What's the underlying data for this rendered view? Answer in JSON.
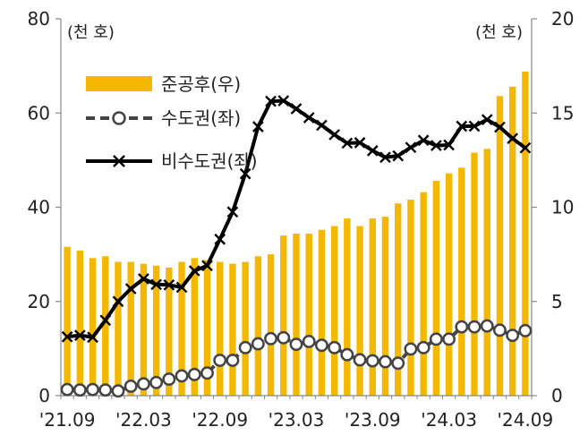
{
  "chart_data": {
    "type": "bar+line",
    "left_unit": "(천 호)",
    "right_unit": "(천 호)",
    "y_left": {
      "lim": [
        0,
        80
      ],
      "ticks": [
        "0",
        "20",
        "40",
        "60",
        "80"
      ]
    },
    "y_right": {
      "lim": [
        0,
        20
      ],
      "ticks": [
        "0",
        "5",
        "10",
        "15",
        "20"
      ]
    },
    "x_tick_labels": [
      "'21.09",
      "'22.03",
      "'22.09",
      "'23.03",
      "'23.09",
      "'24.03",
      "'24.09"
    ],
    "x_tick_index": [
      0,
      6,
      12,
      18,
      24,
      30,
      36
    ],
    "months": [
      "'21.09",
      "'21.10",
      "'21.11",
      "'21.12",
      "'22.01",
      "'22.02",
      "'22.03",
      "'22.04",
      "'22.05",
      "'22.06",
      "'22.07",
      "'22.08",
      "'22.09",
      "'22.10",
      "'22.11",
      "'22.12",
      "'23.01",
      "'23.02",
      "'23.03",
      "'23.04",
      "'23.05",
      "'23.06",
      "'23.07",
      "'23.08",
      "'23.09",
      "'23.10",
      "'23.11",
      "'23.12",
      "'24.01",
      "'24.02",
      "'24.03",
      "'24.04",
      "'24.05",
      "'24.06",
      "'24.07",
      "'24.08",
      "'24.09"
    ],
    "legend": [
      {
        "key": "bar",
        "label": "준공후(우)"
      },
      {
        "key": "metro",
        "label": "수도권(좌)"
      },
      {
        "key": "nonmetro",
        "label": "비수도권(좌)"
      }
    ],
    "series": [
      {
        "name": "준공후(우)",
        "axis": "right",
        "color": "#f5b800",
        "values": [
          7.9,
          7.7,
          7.3,
          7.4,
          7.1,
          7.1,
          7.0,
          6.9,
          6.8,
          7.1,
          7.3,
          7.2,
          7.1,
          7.0,
          7.1,
          7.4,
          7.5,
          8.5,
          8.6,
          8.6,
          8.8,
          9.0,
          9.4,
          9.0,
          9.4,
          9.5,
          10.2,
          10.4,
          10.8,
          11.4,
          11.8,
          12.1,
          12.9,
          13.1,
          15.9,
          16.4,
          17.2
        ]
      },
      {
        "name": "수도권(좌)",
        "axis": "left",
        "color": "#000000",
        "values": [
          1.3,
          1.2,
          1.3,
          1.2,
          1.0,
          2.0,
          2.5,
          2.8,
          3.5,
          4.2,
          4.5,
          4.8,
          7.5,
          7.5,
          10.2,
          11.0,
          12.1,
          12.3,
          10.9,
          11.5,
          10.7,
          10.2,
          8.7,
          7.6,
          7.4,
          7.2,
          6.9,
          9.9,
          10.2,
          12.0,
          12.0,
          14.6,
          14.6,
          14.8,
          13.9,
          12.8,
          13.8
        ]
      },
      {
        "name": "비수도권(좌)",
        "axis": "left",
        "color": "#000000",
        "values": [
          12.5,
          12.8,
          12.4,
          16.0,
          20.0,
          22.7,
          24.8,
          23.6,
          23.5,
          23.0,
          26.5,
          27.6,
          33.2,
          39.0,
          47.1,
          57.1,
          62.5,
          62.6,
          60.9,
          59.0,
          57.4,
          55.4,
          53.6,
          53.7,
          52.0,
          50.6,
          50.9,
          52.7,
          54.2,
          53.1,
          53.2,
          57.2,
          57.2,
          58.6,
          57.0,
          54.6,
          52.6
        ]
      }
    ]
  }
}
